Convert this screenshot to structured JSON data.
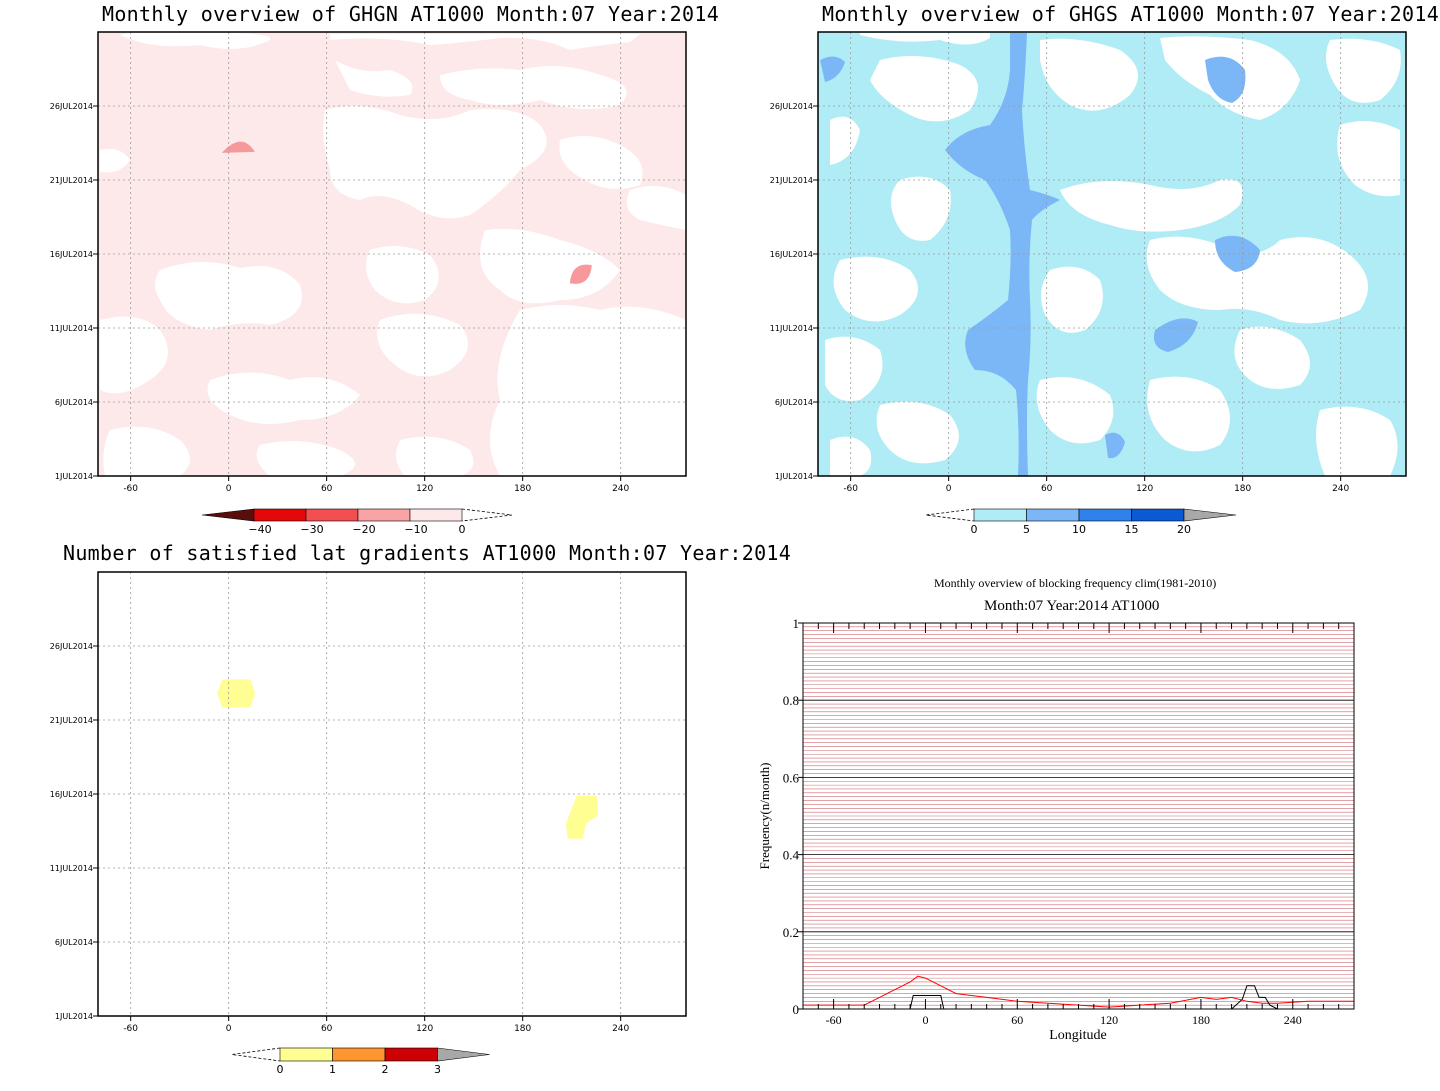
{
  "panels": {
    "ghgn": {
      "title": "Monthly overview of GHGN AT1000 Month:07 Year:2014",
      "colorbar": {
        "labels": [
          "−40",
          "−30",
          "−20",
          "−10",
          "0"
        ],
        "colors": [
          "#5a0d0d",
          "#e6070a",
          "#f34f52",
          "#f9a3a4",
          "#fde9e9"
        ]
      },
      "features": [
        {
          "lon": 5,
          "day": 23.1,
          "value": -15
        },
        {
          "lon": 215,
          "day": 14.7,
          "value": -15
        }
      ]
    },
    "ghgs": {
      "title": "Monthly overview of GHGS AT1000 Month:07 Year:2014",
      "colorbar": {
        "labels": [
          "0",
          "5",
          "10",
          "15",
          "20"
        ],
        "colors": [
          "#b0ecf5",
          "#7bb6f7",
          "#2f82ec",
          "#0c5ad3",
          "#a8a8a8"
        ]
      }
    },
    "gradients": {
      "title": "Number of satisfied lat gradients AT1000 Month:07 Year:2014",
      "colorbar": {
        "labels": [
          "0",
          "1",
          "2",
          "3"
        ],
        "colors": [
          "#fffe93",
          "#fd962f",
          "#cc0005",
          "#a8a8a8"
        ]
      },
      "features": [
        {
          "lon": 4,
          "day": 22.8,
          "value": 1
        },
        {
          "lon": 215,
          "day": 14.4,
          "value": 1
        }
      ]
    },
    "blocking": {
      "title_main": "Monthly overview of blocking frequency clim(1981-2010)",
      "title_sub": "Month:07 Year:2014  AT1000"
    }
  },
  "axes": {
    "x_ticks": [
      "-60",
      "0",
      "60",
      "120",
      "180",
      "240"
    ],
    "x_tick_values": [
      -60,
      0,
      60,
      120,
      180,
      240
    ],
    "xlim": [
      -80,
      280
    ],
    "y_ticks": [
      "1JUL2014",
      "6JUL2014",
      "11JUL2014",
      "16JUL2014",
      "21JUL2014",
      "26JUL2014"
    ],
    "y_tick_values": [
      1,
      6,
      11,
      16,
      21,
      26
    ],
    "ylim": [
      1,
      31
    ]
  },
  "chart_data": [
    {
      "type": "heatmap",
      "title": "Monthly overview of GHGN AT1000 Month:07 Year:2014",
      "xlim": [
        -80,
        280
      ],
      "ylim": [
        "1JUL2014",
        "31JUL2014"
      ],
      "contour_levels": [
        -40,
        -30,
        -20,
        -10,
        0
      ],
      "note_values": [
        {
          "lon": 5,
          "date": "23JUL2014",
          "band": "-20 to -10"
        },
        {
          "lon": 215,
          "date": "15JUL2014",
          "band": "-20 to -10"
        }
      ]
    },
    {
      "type": "heatmap",
      "title": "Monthly overview of GHGS AT1000 Month:07 Year:2014",
      "xlim": [
        -80,
        280
      ],
      "ylim": [
        "1JUL2014",
        "31JUL2014"
      ],
      "contour_levels": [
        0,
        5,
        10,
        15,
        20
      ],
      "spine": {
        "lon_band": [
          35,
          50
        ],
        "band": "5 to 10"
      }
    },
    {
      "type": "heatmap",
      "title": "Number of satisfied lat gradients AT1000 Month:07 Year:2014",
      "xlim": [
        -80,
        280
      ],
      "ylim": [
        "1JUL2014",
        "31JUL2014"
      ],
      "contour_levels": [
        0,
        1,
        2,
        3
      ]
    },
    {
      "type": "line",
      "title": "Monthly overview of blocking frequency clim(1981-2010)",
      "subtitle": "Month:07 Year:2014  AT1000",
      "xlabel": "Longitude",
      "ylabel": "Frequency(n/month)",
      "xlim": [
        -80,
        280
      ],
      "ylim": [
        0,
        1
      ],
      "x_ticks": [
        -60,
        0,
        60,
        120,
        180,
        240
      ],
      "y_ticks": [
        0,
        0.2,
        0.4,
        0.6,
        0.8,
        1
      ],
      "y_tick_labels": [
        "0",
        "0.2",
        "0.4",
        "0.6",
        "0.8",
        "1"
      ],
      "series": [
        {
          "color": "#ff0000",
          "x": [
            -80,
            -60,
            -40,
            -30,
            -20,
            -10,
            -5,
            0,
            10,
            20,
            40,
            60,
            80,
            100,
            120,
            140,
            160,
            180,
            190,
            200,
            210,
            220,
            230,
            250,
            280
          ],
          "y": [
            0.01,
            0.01,
            0.01,
            0.03,
            0.05,
            0.07,
            0.085,
            0.08,
            0.06,
            0.04,
            0.03,
            0.02,
            0.015,
            0.01,
            0.005,
            0.01,
            0.015,
            0.03,
            0.025,
            0.03,
            0.02,
            0.015,
            0.015,
            0.02,
            0.02
          ]
        },
        {
          "color": "#000000",
          "x": [
            -80,
            -50,
            -49,
            -10,
            -8,
            10,
            12,
            50,
            200,
            207,
            210,
            215,
            218,
            222,
            225,
            230,
            280
          ],
          "y": [
            0,
            0,
            0,
            0,
            0.035,
            0.035,
            0,
            0,
            0,
            0.025,
            0.06,
            0.06,
            0.03,
            0.03,
            0.01,
            0,
            0
          ]
        }
      ]
    }
  ]
}
